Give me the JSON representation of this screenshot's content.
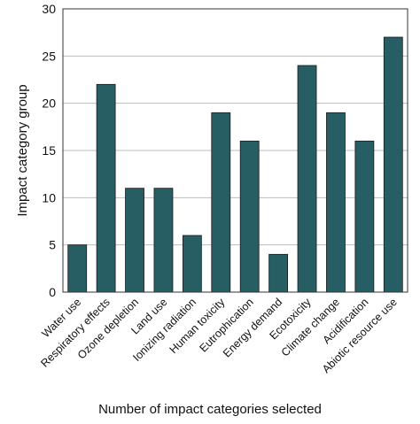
{
  "chart_data": {
    "type": "bar",
    "title": "",
    "xlabel": "Number of impact categories selected",
    "ylabel": "Impact category group",
    "categories": [
      "Water use",
      "Respiratory effects",
      "Ozone depletion",
      "Land use",
      "Ionizing radiation",
      "Human toxicity",
      "Eutrophication",
      "Energy demand",
      "Ecotoxicity",
      "Climate change",
      "Acidification",
      "Abiotic resource use"
    ],
    "values": [
      5,
      22,
      11,
      11,
      6,
      19,
      16,
      4,
      24,
      19,
      16,
      27
    ],
    "ylim": [
      0,
      30
    ],
    "yticks": [
      0,
      5,
      10,
      15,
      20,
      25,
      30
    ],
    "grid": "horizontal",
    "legend": "none",
    "colors": {
      "bar_fill": "#275e63",
      "bar_stroke": "#1a1a1a",
      "grid": "#bdbdbd",
      "frame": "#333333"
    }
  }
}
